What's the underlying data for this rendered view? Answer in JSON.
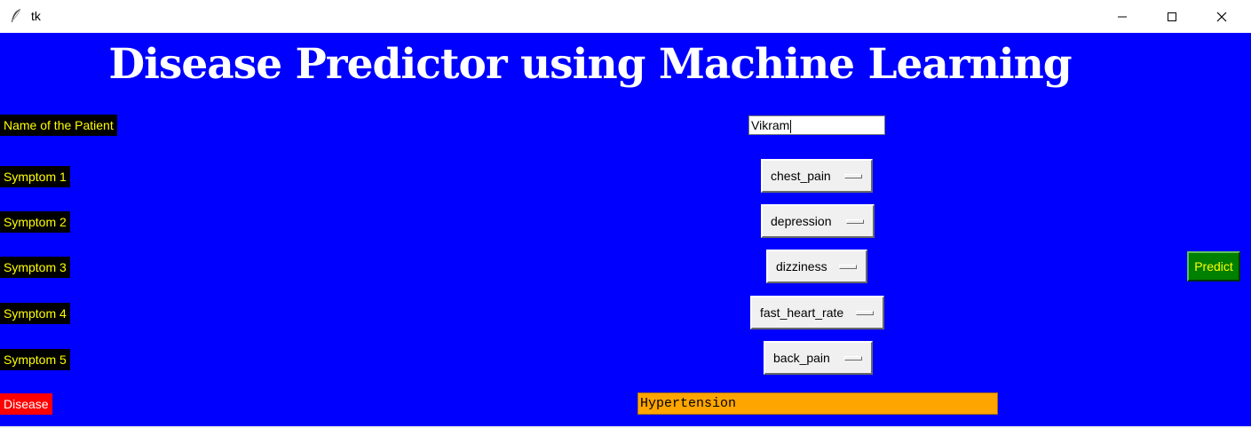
{
  "window": {
    "title": "tk",
    "icon": "feather-icon",
    "controls": [
      "minimize-icon",
      "maximize-icon",
      "close-icon"
    ]
  },
  "heading": "Disease Predictor using Machine Learning",
  "form": {
    "name_label": "Name of the Patient",
    "name_value": "Vikram",
    "symptoms": [
      {
        "label": "Symptom 1",
        "value": "chest_pain"
      },
      {
        "label": "Symptom 2",
        "value": "depression"
      },
      {
        "label": "Symptom 3",
        "value": "dizziness"
      },
      {
        "label": "Symptom 4",
        "value": "fast_heart_rate"
      },
      {
        "label": "Symptom 5",
        "value": "back_pain"
      }
    ],
    "predict_label": "Predict",
    "disease_label": "Disease",
    "disease_value": "Hypertension"
  },
  "colors": {
    "background": "#0000ff",
    "label_bg": "#000000",
    "label_text": "#ffff00",
    "disease_label_bg": "#ff0000",
    "predict_bg": "#008000",
    "result_bg": "#ffa500"
  }
}
